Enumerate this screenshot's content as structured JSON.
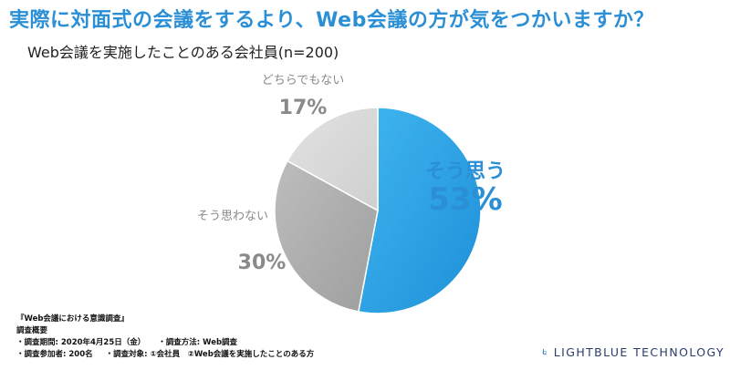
{
  "title": "実際に対面式の会議をするより、Web会議の方が気をつかいますか？",
  "subtitle": "Web会議を実施したことのある会社員(n=200)",
  "chart_data": {
    "type": "pie",
    "title": "Web会議を実施したことのある会社員(n=200)",
    "slices": [
      {
        "label": "そう思う",
        "value": 53,
        "display": "53%",
        "color": "#2aa6e6"
      },
      {
        "label": "そう思わない",
        "value": 30,
        "display": "30%",
        "color": "#a9a9a9"
      },
      {
        "label": "どちらでもない",
        "value": 17,
        "display": "17%",
        "color": "#d8d8d8"
      }
    ]
  },
  "survey": {
    "name": "『Web会議における意識調査』",
    "heading": "調査概要",
    "period": "・調査期間: 2020年4月25日（金）",
    "method": "・調査方法: Web調査",
    "participants": "・調査参加者: 200名",
    "target": "・調査対象: ①会社員　②Web会議を実施したことのある方"
  },
  "logo": {
    "text": "LIGHTBLUE TECHNOLOGY",
    "icon": "lightblue-logo-icon"
  }
}
